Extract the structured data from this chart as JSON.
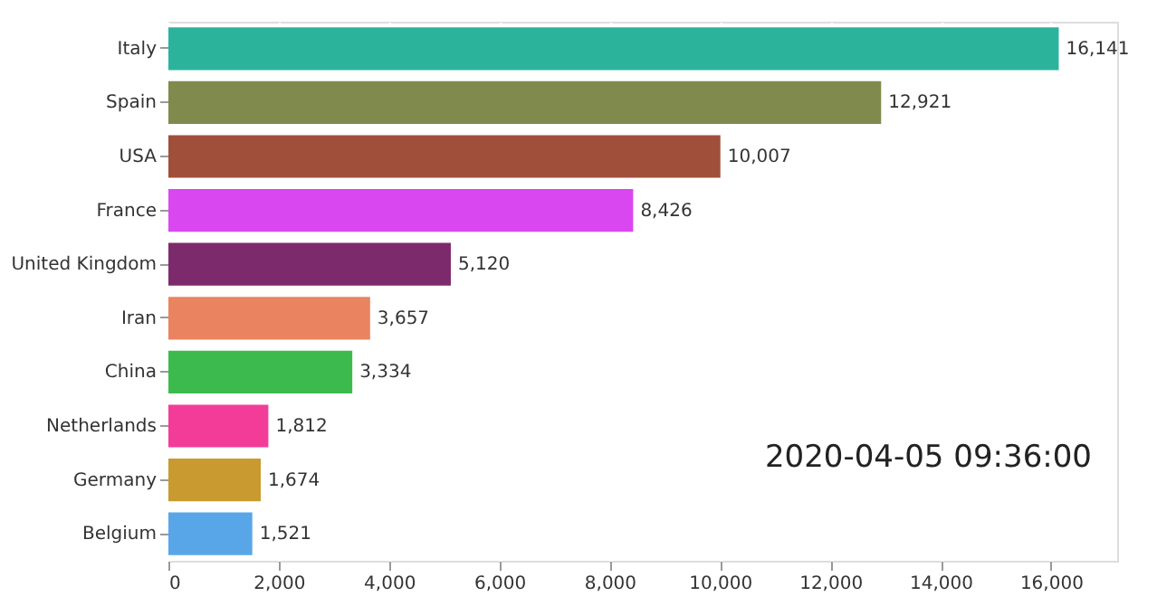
{
  "chart_data": {
    "type": "bar",
    "orientation": "horizontal",
    "categories": [
      "Italy",
      "Spain",
      "USA",
      "France",
      "United Kingdom",
      "Iran",
      "China",
      "Netherlands",
      "Germany",
      "Belgium"
    ],
    "values": [
      16141,
      12921,
      10007,
      8426,
      5120,
      3657,
      3334,
      1812,
      1674,
      1521
    ],
    "value_labels": [
      "16,141",
      "12,921",
      "10,007",
      "8,426",
      "5,120",
      "3,657",
      "3,334",
      "1,812",
      "1,674",
      "1,521"
    ],
    "colors": [
      "#2bb39c",
      "#7f8a4c",
      "#a04f3b",
      "#d947f0",
      "#7d2a6c",
      "#ea8360",
      "#3dba4e",
      "#f23c98",
      "#c99a30",
      "#58a6e8"
    ],
    "xlim": [
      0,
      17200
    ],
    "xticks": [
      0,
      {
        "value": 2000,
        "label": "2,000"
      },
      {
        "value": 4000,
        "label": "4,000"
      },
      {
        "value": 6000,
        "label": "6,000"
      },
      {
        "value": 8000,
        "label": "8,000"
      },
      {
        "value": 10000,
        "label": "10,000"
      },
      {
        "value": 12000,
        "label": "12,000"
      },
      {
        "value": 14000,
        "label": "14,000"
      },
      {
        "value": 16000,
        "label": "16,000"
      }
    ],
    "grid": "x",
    "legend": false,
    "annotations": [
      "2020-04-05 09:36:00"
    ]
  }
}
